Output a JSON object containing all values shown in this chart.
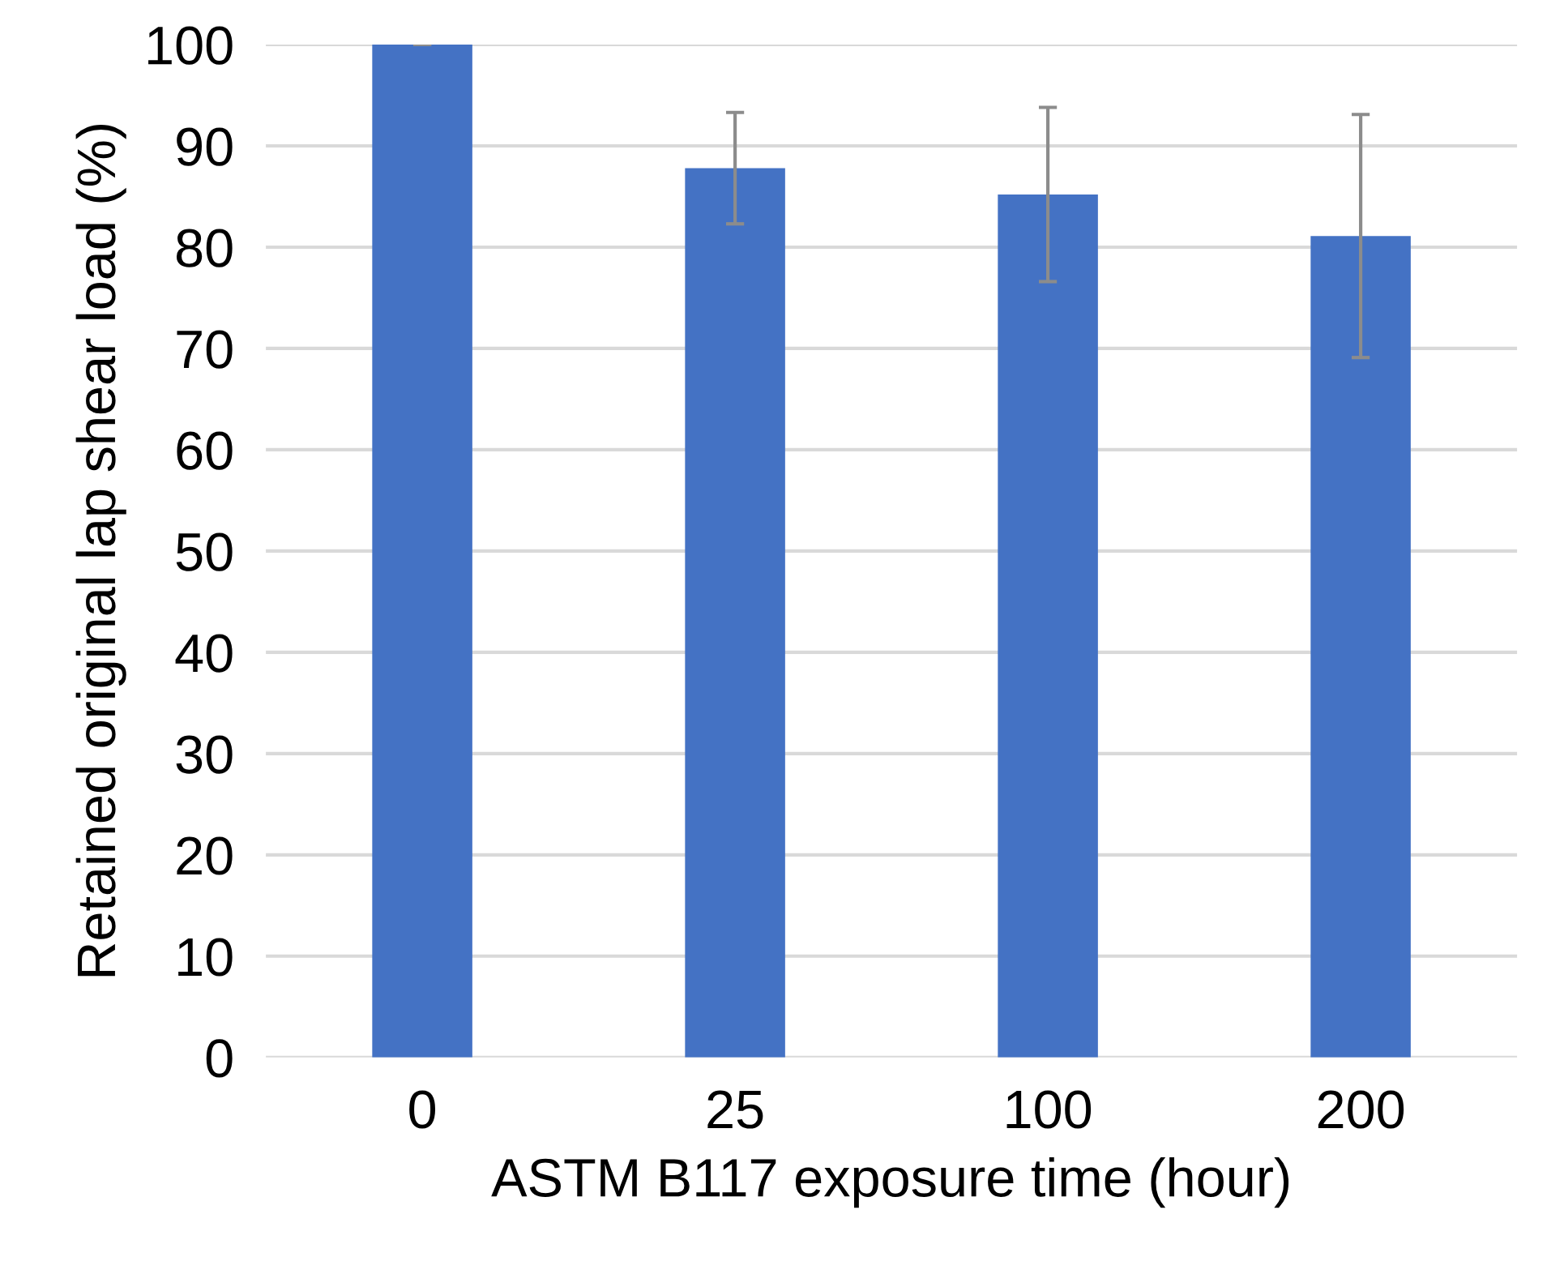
{
  "chart_data": {
    "type": "bar",
    "xlabel": "ASTM B117 exposure time (hour)",
    "ylabel": "Retained original lap shear load (%)",
    "categories": [
      "0",
      "25",
      "100",
      "200"
    ],
    "values": [
      100,
      87.8,
      85.2,
      81.1
    ],
    "errors": [
      0,
      5.5,
      8.6,
      12.0
    ],
    "color": "#4472c4",
    "ylim": [
      0,
      100
    ],
    "yticks": [
      0,
      10,
      20,
      30,
      40,
      50,
      60,
      70,
      80,
      90,
      100
    ],
    "grid": "y"
  }
}
